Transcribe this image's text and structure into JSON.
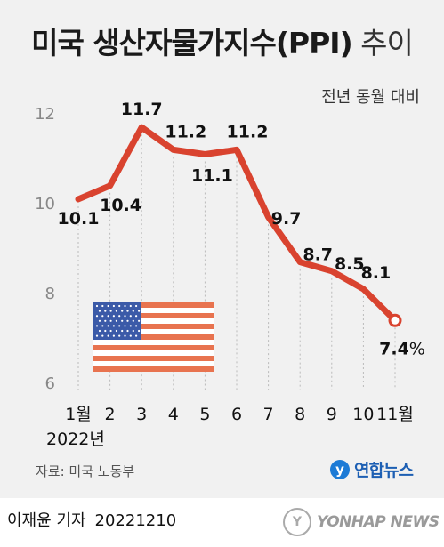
{
  "header": {
    "title_bold": "미국 생산자물가지수(PPI)",
    "title_light": "추이",
    "subtitle": "전년 동월 대비"
  },
  "chart_data": {
    "type": "line",
    "categories": [
      "1월",
      "2",
      "3",
      "4",
      "5",
      "6",
      "7",
      "8",
      "9",
      "10",
      "11월"
    ],
    "x_year_label": "2022년",
    "values": [
      10.1,
      10.4,
      11.7,
      11.2,
      11.1,
      11.2,
      9.7,
      8.7,
      8.5,
      8.1,
      7.4
    ],
    "data_labels": [
      "10.1",
      "10.4",
      "11.7",
      "11.2",
      "11.1",
      "11.2",
      "9.7",
      "8.7",
      "8.5",
      "8.1",
      "7.4"
    ],
    "last_label_unit": "%",
    "yticks": [
      6,
      8,
      10,
      12
    ],
    "ylim": [
      6,
      12.6
    ],
    "grid": "vertical dotted",
    "line_color": "#d9432f"
  },
  "decor": {
    "flag_icon": "us-flag-icon"
  },
  "footer": {
    "source": "자료: 미국 노동부",
    "agency_logo": "연합뉴스",
    "byline_name": "이재윤 기자",
    "byline_date": "20221210",
    "watermark": "YONHAP NEWS"
  }
}
